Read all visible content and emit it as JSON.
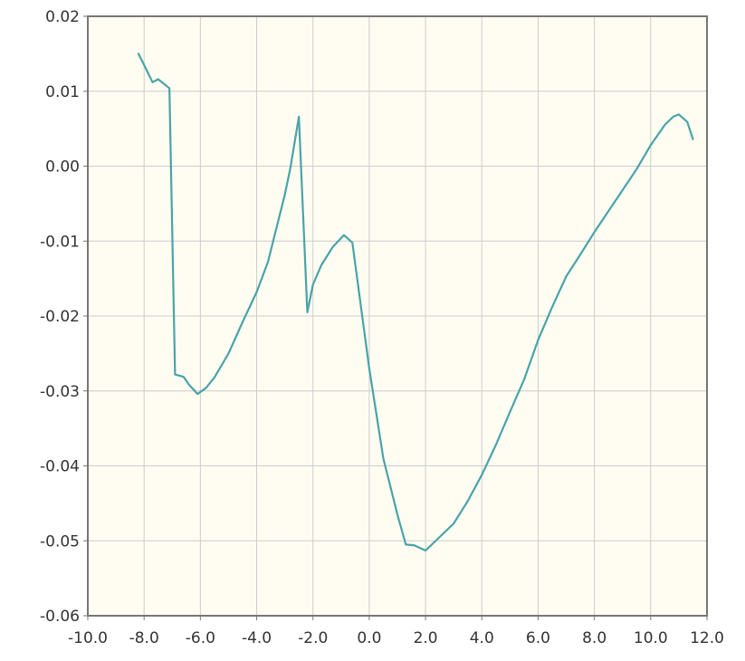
{
  "chart_data": {
    "type": "line",
    "title": "",
    "xlabel": "",
    "ylabel": "",
    "xlim": [
      -10,
      12
    ],
    "ylim": [
      -0.06,
      0.02
    ],
    "x_ticks": [
      "-10.0",
      "-8.0",
      "-6.0",
      "-4.0",
      "-2.0",
      "0.0",
      "2.0",
      "4.0",
      "6.0",
      "8.0",
      "10.0",
      "12.0"
    ],
    "y_ticks": [
      "0.02",
      "0.01",
      "0.00",
      "-0.01",
      "-0.02",
      "-0.03",
      "-0.04",
      "-0.05",
      "-0.06"
    ],
    "grid": true,
    "colors": {
      "line": "#4aa3a8",
      "plot_bg": "#fffdf2",
      "grid": "#cccccc",
      "frame": "#777777"
    },
    "series": [
      {
        "points": [
          [
            -8.2,
            0.015
          ],
          [
            -8.0,
            0.0135
          ],
          [
            -7.7,
            0.0112
          ],
          [
            -7.5,
            0.0116
          ],
          [
            -7.3,
            0.011
          ],
          [
            -7.1,
            0.0104
          ],
          [
            -6.9,
            -0.0278
          ],
          [
            -6.6,
            -0.0281
          ],
          [
            -6.4,
            -0.0292
          ],
          [
            -6.1,
            -0.0304
          ],
          [
            -5.8,
            -0.0296
          ],
          [
            -5.5,
            -0.0282
          ],
          [
            -5.0,
            -0.025
          ],
          [
            -4.5,
            -0.0208
          ],
          [
            -4.0,
            -0.0168
          ],
          [
            -3.6,
            -0.0128
          ],
          [
            -3.0,
            -0.0038
          ],
          [
            -2.8,
            -0.0002
          ],
          [
            -2.5,
            0.0066
          ],
          [
            -2.2,
            -0.0195
          ],
          [
            -2.0,
            -0.0158
          ],
          [
            -1.7,
            -0.0132
          ],
          [
            -1.3,
            -0.0108
          ],
          [
            -0.9,
            -0.0092
          ],
          [
            -0.6,
            -0.0102
          ],
          [
            0.0,
            -0.027
          ],
          [
            0.5,
            -0.039
          ],
          [
            1.0,
            -0.0465
          ],
          [
            1.3,
            -0.0505
          ],
          [
            1.6,
            -0.0506
          ],
          [
            2.0,
            -0.0513
          ],
          [
            2.5,
            -0.0495
          ],
          [
            3.0,
            -0.0477
          ],
          [
            3.5,
            -0.0447
          ],
          [
            4.0,
            -0.0412
          ],
          [
            4.5,
            -0.0372
          ],
          [
            5.0,
            -0.0328
          ],
          [
            5.5,
            -0.0285
          ],
          [
            6.0,
            -0.0232
          ],
          [
            6.5,
            -0.0188
          ],
          [
            7.0,
            -0.0147
          ],
          [
            7.5,
            -0.0118
          ],
          [
            8.0,
            -0.0088
          ],
          [
            8.5,
            -0.006
          ],
          [
            9.0,
            -0.0032
          ],
          [
            9.5,
            -0.0004
          ],
          [
            10.0,
            0.0028
          ],
          [
            10.5,
            0.0055
          ],
          [
            10.8,
            0.0066
          ],
          [
            11.0,
            0.0069
          ],
          [
            11.3,
            0.0059
          ],
          [
            11.5,
            0.0036
          ]
        ]
      }
    ]
  }
}
